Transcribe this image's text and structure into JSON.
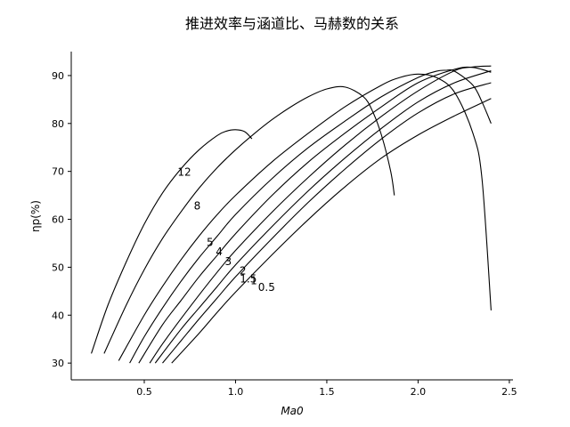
{
  "chart_data": {
    "type": "line",
    "title": "推进效率与涵道比、马赫数的关系",
    "xlabel": "Ma0",
    "ylabel": "ηp(%)",
    "xlim": [
      0.1,
      2.52
    ],
    "ylim": [
      26.5,
      95
    ],
    "xticks": [
      {
        "value": 0.5,
        "label": "0.5"
      },
      {
        "value": 1.0,
        "label": "1.0"
      },
      {
        "value": 1.5,
        "label": "1.5"
      },
      {
        "value": 2.0,
        "label": "2.0"
      },
      {
        "value": 2.5,
        "label": "2.5"
      }
    ],
    "yticks": [
      {
        "value": 30,
        "label": "30"
      },
      {
        "value": 40,
        "label": "40"
      },
      {
        "value": 50,
        "label": "50"
      },
      {
        "value": 60,
        "label": "60"
      },
      {
        "value": 70,
        "label": "70"
      },
      {
        "value": 80,
        "label": "80"
      },
      {
        "value": 90,
        "label": "90"
      }
    ],
    "grid": false,
    "series": [
      {
        "name": "12",
        "label_at": [
          0.72,
          69.8
        ],
        "x": [
          0.21,
          0.3,
          0.4,
          0.5,
          0.6,
          0.7,
          0.8,
          0.9,
          0.95,
          1.0,
          1.05,
          1.09
        ],
        "y": [
          32,
          42,
          51,
          59,
          65.5,
          70.5,
          74.5,
          77.5,
          78.4,
          78.7,
          78.3,
          76.8
        ]
      },
      {
        "name": "8",
        "label_at": [
          0.79,
          62.8
        ],
        "x": [
          0.28,
          0.4,
          0.5,
          0.6,
          0.7,
          0.8,
          0.9,
          1.0,
          1.1,
          1.2,
          1.3,
          1.4,
          1.5,
          1.6,
          1.7,
          1.75,
          1.8,
          1.85,
          1.87
        ],
        "y": [
          32,
          42,
          49.5,
          56,
          61.5,
          66.5,
          70.8,
          74.5,
          77.8,
          80.8,
          83.4,
          85.6,
          87.2,
          87.6,
          85.6,
          82.6,
          77.5,
          70,
          65
        ]
      },
      {
        "name": "5",
        "label_at": [
          0.86,
          55.2
        ],
        "x": [
          0.36,
          0.5,
          0.6,
          0.7,
          0.8,
          0.9,
          1.0,
          1.2,
          1.4,
          1.6,
          1.8,
          1.9,
          2.0,
          2.1,
          2.2,
          2.3,
          2.35,
          2.4
        ],
        "y": [
          30.5,
          40,
          46,
          51.5,
          56.5,
          61,
          65,
          72,
          78,
          83.5,
          88,
          89.6,
          90.3,
          89.6,
          86.5,
          78,
          68.5,
          41
        ]
      },
      {
        "name": "4",
        "label_at": [
          0.91,
          53.2
        ],
        "x": [
          0.42,
          0.5,
          0.6,
          0.7,
          0.8,
          0.9,
          1.0,
          1.2,
          1.4,
          1.6,
          1.8,
          2.0,
          2.1,
          2.15,
          2.2,
          2.3,
          2.35,
          2.4
        ],
        "y": [
          30,
          35.5,
          41.5,
          47,
          52,
          56.5,
          61,
          68.5,
          75,
          80.5,
          85.6,
          89.6,
          90.9,
          91.1,
          90.9,
          88,
          84.5,
          80
        ]
      },
      {
        "name": "3",
        "label_at": [
          0.96,
          51.2
        ],
        "x": [
          0.47,
          0.6,
          0.7,
          0.8,
          0.9,
          1.0,
          1.2,
          1.4,
          1.6,
          1.8,
          2.0,
          2.2,
          2.3,
          2.4
        ],
        "y": [
          30,
          38,
          43,
          48,
          52.5,
          57,
          65,
          72,
          78,
          83.5,
          88.5,
          91.3,
          91.7,
          90.7
        ]
      },
      {
        "name": "2",
        "label_at": [
          1.04,
          49.2
        ],
        "x": [
          0.53,
          0.6,
          0.7,
          0.8,
          0.9,
          1.0,
          1.2,
          1.4,
          1.6,
          1.8,
          2.0,
          2.2,
          2.3,
          2.4
        ],
        "y": [
          30,
          34,
          39.2,
          44.2,
          49,
          53.5,
          61.5,
          68.8,
          75.5,
          81.5,
          86.8,
          91,
          91.8,
          92
        ]
      },
      {
        "name": "1.5",
        "label_at": [
          1.07,
          47.6
        ],
        "x": [
          0.56,
          0.7,
          0.8,
          0.9,
          1.0,
          1.2,
          1.4,
          1.6,
          1.8,
          2.0,
          2.2,
          2.4
        ],
        "y": [
          30,
          37,
          41.5,
          46,
          50.5,
          58.5,
          66,
          72.8,
          79,
          84.5,
          88.5,
          91
        ]
      },
      {
        "name": "1",
        "label_at": [
          1.1,
          47.2
        ],
        "x": [
          0.6,
          0.7,
          0.8,
          0.9,
          1.0,
          1.2,
          1.4,
          1.6,
          1.8,
          2.0,
          2.2,
          2.4
        ],
        "y": [
          30,
          34.6,
          39.2,
          43.6,
          48,
          56,
          63.6,
          70.5,
          76.8,
          82.2,
          86.2,
          88.5
        ]
      },
      {
        "name": "0.5",
        "label_at": [
          1.17,
          45.8
        ],
        "x": [
          0.65,
          0.8,
          0.9,
          1.0,
          1.2,
          1.4,
          1.6,
          1.8,
          2.0,
          2.2,
          2.4
        ],
        "y": [
          30,
          36.2,
          40.6,
          44.8,
          52.6,
          60,
          66.8,
          72.8,
          77.6,
          81.6,
          85.2
        ]
      }
    ]
  }
}
